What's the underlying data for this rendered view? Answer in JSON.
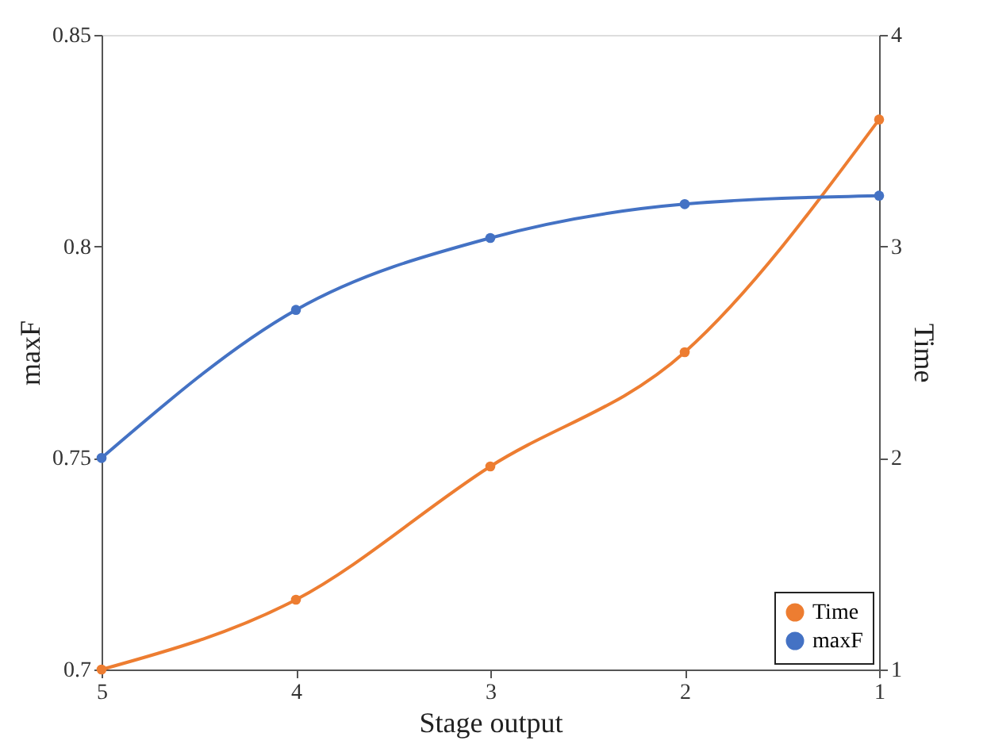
{
  "chart_data": {
    "type": "line",
    "xlabel": "Stage output",
    "ylabel": "maxF",
    "y2label": "Time",
    "categories": [
      "5",
      "4",
      "3",
      "2",
      "1"
    ],
    "series": [
      {
        "name": "Time",
        "color": "#ed7d31",
        "axis": "y2",
        "values": [
          1.0,
          1.33,
          1.96,
          2.5,
          3.6
        ]
      },
      {
        "name": "maxF",
        "color": "#4472c4",
        "values": [
          0.75,
          0.785,
          0.802,
          0.81,
          0.812
        ]
      }
    ],
    "ylim": [
      0.7,
      0.85
    ],
    "yticks": [
      0.7,
      0.75,
      0.8,
      0.85
    ],
    "y2lim": [
      1,
      4
    ],
    "y2ticks": [
      1,
      2,
      3,
      4
    ],
    "legend": "bottom right",
    "marker": "circle",
    "line_style": "solid"
  }
}
